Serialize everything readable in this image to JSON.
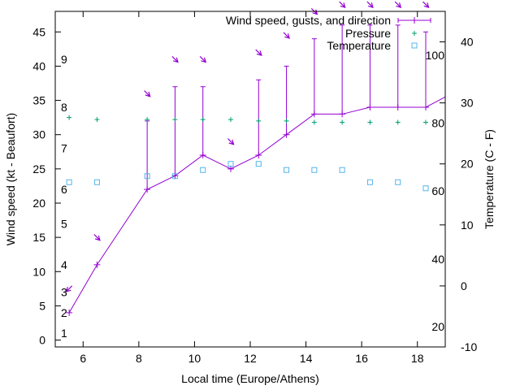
{
  "chart_data": {
    "type": "line",
    "xlabel": "Local time (Europe/Athens)",
    "ylabel": "Wind speed (kt - Beaufort)",
    "y2label": "Temperature (C - F)",
    "xlim": [
      5.0,
      19.0
    ],
    "ylim": [
      -1.0,
      48.0
    ],
    "y2lim": [
      -10.0,
      45.0
    ],
    "x_ticks": [
      6,
      8,
      10,
      12,
      14,
      16,
      18
    ],
    "y_ticks": [
      0,
      5,
      10,
      15,
      20,
      25,
      30,
      35,
      40,
      45
    ],
    "y2_ticks": [
      -10,
      0,
      10,
      20,
      30,
      40
    ],
    "beaufort_labels": [
      {
        "label": "1",
        "kt": 1
      },
      {
        "label": "2",
        "kt": 4
      },
      {
        "label": "3",
        "kt": 7
      },
      {
        "label": "4",
        "kt": 11
      },
      {
        "label": "5",
        "kt": 17
      },
      {
        "label": "6",
        "kt": 22
      },
      {
        "label": "7",
        "kt": 28
      },
      {
        "label": "8",
        "kt": 34
      },
      {
        "label": "9",
        "kt": 41
      }
    ],
    "fahrenheit_labels": [
      {
        "label": "20",
        "c": -6.7
      },
      {
        "label": "40",
        "c": 4.4
      },
      {
        "label": "60",
        "c": 15.6
      },
      {
        "label": "80",
        "c": 26.7
      },
      {
        "label": "100",
        "c": 37.8
      }
    ],
    "legend": [
      {
        "key": "wind",
        "label": "Wind speed, gusts, and direction"
      },
      {
        "key": "pressure",
        "label": "Pressure"
      },
      {
        "key": "temperature",
        "label": "Temperature"
      }
    ],
    "series": {
      "wind": {
        "color": "#9400d3",
        "x": [
          5.5,
          6.5,
          8.3,
          9.3,
          10.3,
          11.3,
          12.3,
          13.3,
          14.3,
          15.3,
          16.3,
          17.3,
          18.3,
          19.0
        ],
        "speed": [
          4,
          11,
          22,
          24,
          27,
          25,
          27,
          30,
          33,
          33,
          34,
          34,
          34,
          35.5
        ],
        "gusts": [
          null,
          null,
          32,
          37,
          37,
          null,
          38,
          40,
          44,
          46,
          46,
          46,
          45,
          null
        ]
      },
      "direction_arrows": {
        "color": "#9400d3",
        "x": [
          5.5,
          6.5,
          8.3,
          9.3,
          10.3,
          11.3,
          12.3,
          13.3,
          14.3,
          15.3,
          16.3,
          17.3,
          18.3
        ],
        "kt": [
          7.5,
          15,
          36,
          41,
          41,
          29,
          42,
          44.5,
          48,
          49,
          49,
          49,
          49
        ],
        "bearing_deg": [
          45,
          315,
          315,
          315,
          315,
          315,
          315,
          315,
          315,
          315,
          315,
          315,
          315
        ]
      },
      "pressure": {
        "color": "#009e73",
        "x": [
          5.5,
          6.5,
          8.3,
          9.3,
          10.3,
          11.3,
          12.3,
          13.3,
          14.3,
          15.3,
          16.3,
          17.3,
          18.3
        ],
        "kt": [
          32.5,
          32.2,
          32.2,
          32.2,
          32.2,
          32.2,
          32.0,
          32.0,
          31.8,
          31.8,
          31.8,
          31.8,
          31.8
        ]
      },
      "temperature": {
        "color": "#56b4e9",
        "x": [
          5.5,
          6.5,
          8.3,
          9.3,
          10.3,
          11.3,
          12.3,
          13.3,
          14.3,
          15.3,
          16.3,
          17.3,
          18.3
        ],
        "celsius": [
          17,
          17,
          18,
          18,
          19,
          20,
          20,
          19,
          19,
          19,
          17,
          17,
          16
        ]
      }
    }
  }
}
